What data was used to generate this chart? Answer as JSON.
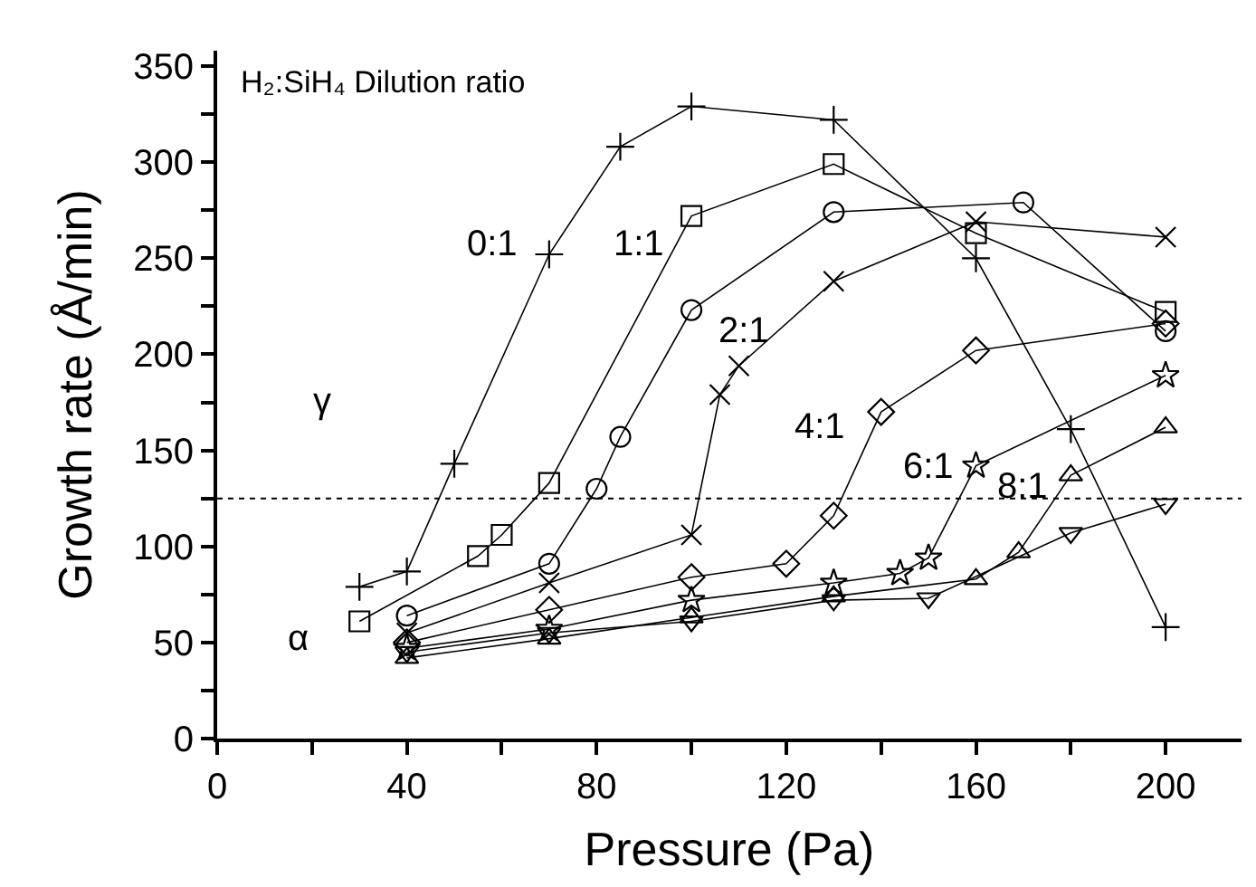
{
  "chart_data": {
    "type": "line",
    "xlabel": "Pressure (Pa)",
    "ylabel": "Growth rate (Å/min)",
    "xlim": [
      0,
      216
    ],
    "ylim": [
      0,
      358
    ],
    "xticks": [
      0,
      {
        "value": 20,
        "label": null
      },
      40,
      {
        "value": 60,
        "label": null
      },
      80,
      {
        "value": 100,
        "label": null
      },
      120,
      {
        "value": 140,
        "label": null
      },
      160,
      {
        "value": 180,
        "label": null
      },
      200
    ],
    "yticks": [
      0,
      {
        "value": 25,
        "label": null
      },
      50,
      {
        "value": 75,
        "label": null
      },
      100,
      {
        "value": 125,
        "label": null
      },
      150,
      {
        "value": 175,
        "label": null
      },
      200,
      {
        "value": 225,
        "label": null
      },
      250,
      {
        "value": 275,
        "label": null
      },
      300,
      {
        "value": 325,
        "label": null
      },
      350
    ],
    "ref_lines": [
      {
        "axis": "y",
        "value": 125,
        "color": "#000000",
        "line_style": "dotted"
      }
    ],
    "annotations": [
      "H₂:SiH₄ Dilution ratio",
      "γ",
      "α",
      "0:1",
      "1:1",
      "2:1",
      "4:1",
      "6:1",
      "8:1"
    ],
    "series": [
      {
        "color": "#000000",
        "marker": "cross",
        "x": [
          30,
          40,
          50,
          70,
          85,
          100,
          130,
          160,
          180,
          200
        ],
        "values": [
          79,
          87,
          143,
          252,
          308,
          329,
          322,
          250,
          161,
          58
        ]
      },
      {
        "color": "#000000",
        "marker": "square",
        "x": [
          30,
          55,
          60,
          70,
          100,
          130,
          160,
          200
        ],
        "values": [
          61,
          95,
          106,
          133,
          272,
          299,
          263,
          222
        ]
      },
      {
        "color": "#000000",
        "marker": "circle",
        "x": [
          40,
          70,
          80,
          85,
          100,
          130,
          170,
          200
        ],
        "values": [
          64,
          91,
          130,
          157,
          223,
          274,
          279,
          212
        ]
      },
      {
        "color": "#000000",
        "marker": "x",
        "x": [
          40,
          70,
          100,
          106,
          110,
          130,
          160,
          200
        ],
        "values": [
          55,
          81,
          106,
          179,
          194,
          238,
          269,
          261
        ]
      },
      {
        "color": "#000000",
        "marker": "diamond",
        "x": [
          40,
          70,
          100,
          120,
          130,
          140,
          160,
          200
        ],
        "values": [
          50,
          67,
          84,
          91,
          116,
          170,
          202,
          216
        ]
      },
      {
        "color": "#000000",
        "marker": "star",
        "x": [
          40,
          70,
          100,
          130,
          144,
          150,
          160,
          200
        ],
        "values": [
          47,
          57,
          72,
          81,
          86,
          94,
          142,
          189
        ]
      },
      {
        "color": "#000000",
        "marker": "triangle",
        "x": [
          40,
          70,
          100,
          130,
          160,
          169,
          180,
          200
        ],
        "values": [
          42,
          52,
          63,
          74,
          83,
          97,
          137,
          162
        ]
      },
      {
        "color": "#000000",
        "marker": "triangle-down",
        "x": [
          40,
          70,
          100,
          130,
          150,
          180,
          200
        ],
        "values": [
          45,
          55,
          61,
          72,
          73,
          107,
          122
        ]
      }
    ]
  }
}
